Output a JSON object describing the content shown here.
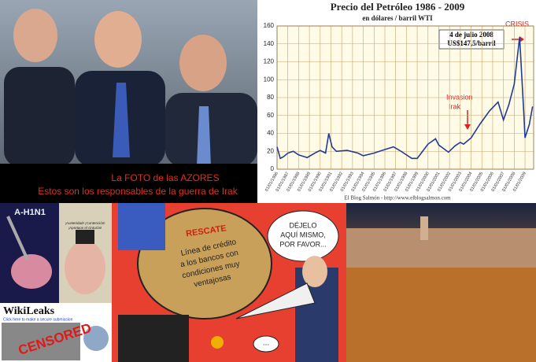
{
  "azores_photo": {
    "caption": [
      "La FOTO de las AZORES",
      "Estos son los responsables de la guerra de Irak"
    ]
  },
  "chart_data": {
    "type": "line",
    "title": "Precio del Petróleo 1986 - 2009",
    "subtitle": "en dólares / barril WTI",
    "source": "El Blog Salmón - http://www.elblogsalmon.com",
    "annotations": {
      "peak": [
        "4 de julio 2008",
        "US$147,5/barril"
      ],
      "crisis": "CRISIS",
      "invasion": [
        "Invasion",
        "Irak"
      ]
    },
    "x": [
      1986,
      1986.3,
      1986.6,
      1987,
      1987.5,
      1988,
      1988.8,
      1989.5,
      1990,
      1990.5,
      1990.8,
      1991.1,
      1991.5,
      1992.5,
      1993.5,
      1994,
      1995,
      1996,
      1996.8,
      1997.5,
      1998.5,
      1999,
      1999.5,
      2000,
      2000.7,
      2001,
      2001.9,
      2002.5,
      2003,
      2003.3,
      2004,
      2004.8,
      2005.7,
      2006.5,
      2007,
      2007.5,
      2008,
      2008.5,
      2008.9,
      2009,
      2009.4,
      2009.7
    ],
    "series": [
      {
        "name": "WTI",
        "color": "#1f3c99",
        "values": [
          25,
          12,
          14,
          18,
          20,
          16,
          13,
          18,
          21,
          18,
          40,
          25,
          20,
          21,
          18,
          15,
          18,
          22,
          25,
          20,
          12,
          12,
          20,
          28,
          34,
          27,
          19,
          26,
          30,
          28,
          35,
          50,
          65,
          75,
          55,
          72,
          95,
          147.5,
          60,
          35,
          50,
          70
        ]
      }
    ],
    "xlim": [
      1986,
      2009.8
    ],
    "xticks": [
      {
        "value": 1986,
        "label": "01/01/1986"
      },
      {
        "value": 1987,
        "label": "01/01/1987"
      },
      {
        "value": 1988,
        "label": "01/01/1988"
      },
      {
        "value": 1989,
        "label": "01/01/1989"
      },
      {
        "value": 1990,
        "label": "01/01/1990"
      },
      {
        "value": 1991,
        "label": "01/01/1991"
      },
      {
        "value": 1992,
        "label": "01/01/1992"
      },
      {
        "value": 1993,
        "label": "01/01/1993"
      },
      {
        "value": 1994,
        "label": "01/01/1994"
      },
      {
        "value": 1995,
        "label": "01/01/1995"
      },
      {
        "value": 1996,
        "label": "01/01/1996"
      },
      {
        "value": 1997,
        "label": "01/01/1997"
      },
      {
        "value": 1998,
        "label": "01/01/1998"
      },
      {
        "value": 1999,
        "label": "01/01/1999"
      },
      {
        "value": 2000,
        "label": "01/01/2000"
      },
      {
        "value": 2001,
        "label": "01/01/2001"
      },
      {
        "value": 2002,
        "label": "01/01/2002"
      },
      {
        "value": 2003,
        "label": "01/01/2003"
      },
      {
        "value": 2004,
        "label": "01/01/2004"
      },
      {
        "value": 2005,
        "label": "01/01/2005"
      },
      {
        "value": 2006,
        "label": "01/01/2006"
      },
      {
        "value": 2007,
        "label": "01/01/2007"
      },
      {
        "value": 2008,
        "label": "01/01/2008"
      },
      {
        "value": 2009,
        "label": "01/01/2009"
      }
    ],
    "ylim": [
      0,
      160
    ],
    "yticks": [
      0,
      20,
      40,
      60,
      80,
      100,
      120,
      140,
      160
    ],
    "grid": true
  },
  "h1n1_image": {
    "label": "A-H1N1"
  },
  "pig_image": {
    "caption": [
      "¡Austeridad! ¡Contención!",
      "¡Apretaos el cinturón!"
    ]
  },
  "wikileaks_image": {
    "title": "WikiLeaks",
    "link": "Click here to make a secure submission",
    "stamp": "CENSORED"
  },
  "cartoon": {
    "sack_label": "RESCATE",
    "sack_text": [
      "Línea de crédito",
      "a los bancos con",
      "condiciones muy",
      "ventajosas"
    ],
    "speech": [
      "DÉJELO",
      "AQUÍ MISMO,",
      "POR FAVOR..."
    ],
    "small_speech": "..."
  }
}
